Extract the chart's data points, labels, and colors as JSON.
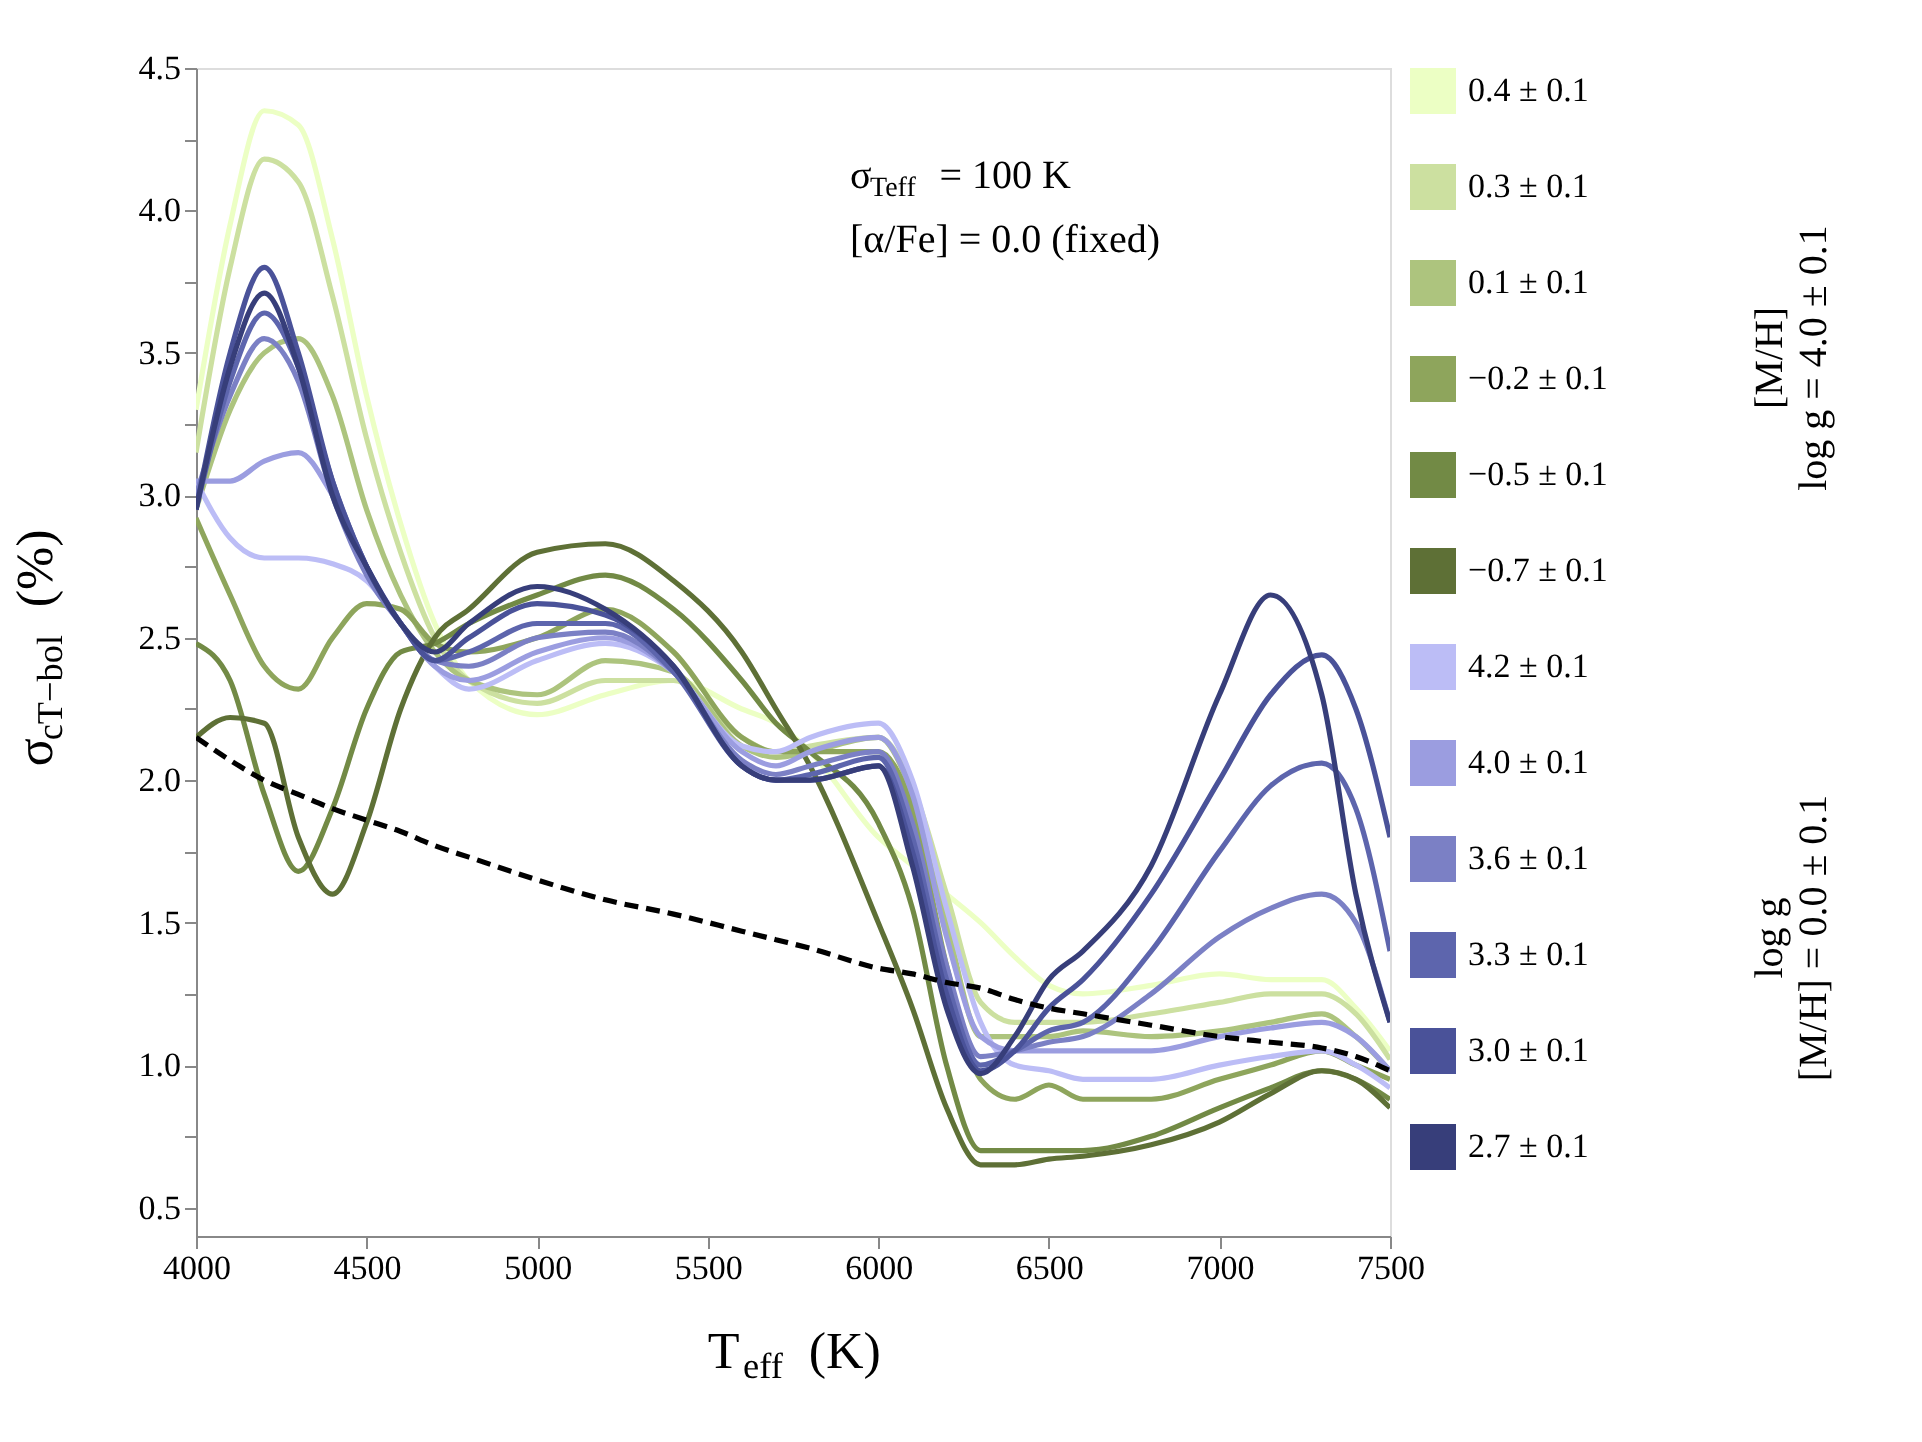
{
  "chart_data": {
    "type": "line",
    "xlabel": "T$_{eff}$ (K)",
    "ylabel": "σ$_{cT−bol}$ (%)",
    "x": [
      4000,
      4100,
      4200,
      4300,
      4400,
      4500,
      4600,
      4700,
      4800,
      5000,
      5200,
      5400,
      5600,
      5700,
      5800,
      6000,
      6100,
      6200,
      6300,
      6400,
      6500,
      6600,
      6800,
      7000,
      7150,
      7300,
      7400,
      7500
    ],
    "xlim": [
      4000,
      7500
    ],
    "xticks": [
      4000,
      4500,
      5000,
      5500,
      6000,
      6500,
      7000,
      7500
    ],
    "ylim": [
      0.4,
      4.5
    ],
    "yticks": [
      {
        "value": 0.5,
        "label": "0.5"
      },
      {
        "value": 0.75,
        "label": null
      },
      {
        "value": 1,
        "label": "1.0"
      },
      {
        "value": 1.25,
        "label": null
      },
      {
        "value": 1.5,
        "label": "1.5"
      },
      {
        "value": 1.75,
        "label": null
      },
      {
        "value": 2,
        "label": "2.0"
      },
      {
        "value": 2.25,
        "label": null
      },
      {
        "value": 2.5,
        "label": "2.5"
      },
      {
        "value": 2.75,
        "label": null
      },
      {
        "value": 3,
        "label": "3.0"
      },
      {
        "value": 3.25,
        "label": null
      },
      {
        "value": 3.5,
        "label": "3.5"
      },
      {
        "value": 3.75,
        "label": null
      },
      {
        "value": 4,
        "label": "4.0"
      },
      {
        "value": 4.25,
        "label": null
      },
      {
        "value": 4.5,
        "label": "4.5"
      }
    ],
    "grid": false,
    "legend": "right",
    "line_style": "solid",
    "annotations": [
      "σ$_{Teff}$ = 100 K",
      "[α/Fe] = 0.0 (fixed)",
      "[M/H]\nlog g = 4.0 ± 0.1",
      "log g\n[M/H] = 0.0 ± 0.1"
    ],
    "series": [
      {
        "name": "0.4 ± 0.1",
        "color": "#ecffc4",
        "values": [
          3.3,
          3.95,
          4.35,
          4.3,
          3.9,
          3.35,
          2.9,
          2.55,
          2.35,
          2.23,
          2.3,
          2.35,
          2.25,
          2.2,
          2.1,
          1.8,
          1.7,
          1.6,
          1.5,
          1.38,
          1.28,
          1.25,
          1.28,
          1.32,
          1.3,
          1.3,
          1.2,
          1.05
        ]
      },
      {
        "name": "0.3 ± 0.1",
        "color": "#cce0a0",
        "values": [
          3.15,
          3.8,
          4.18,
          4.1,
          3.7,
          3.2,
          2.8,
          2.5,
          2.35,
          2.27,
          2.35,
          2.35,
          2.15,
          2.1,
          2.12,
          2.15,
          1.98,
          1.6,
          1.22,
          1.15,
          1.15,
          1.15,
          1.18,
          1.22,
          1.25,
          1.25,
          1.18,
          1.02
        ]
      },
      {
        "name": "0.1 ± 0.1",
        "color": "#adc47e",
        "values": [
          2.95,
          3.3,
          3.5,
          3.55,
          3.35,
          2.95,
          2.65,
          2.45,
          2.35,
          2.3,
          2.42,
          2.38,
          2.12,
          2.08,
          2.1,
          2.15,
          1.95,
          1.5,
          1.1,
          1.1,
          1.1,
          1.12,
          1.1,
          1.12,
          1.15,
          1.18,
          1.1,
          0.98
        ]
      },
      {
        "name": "−0.2 ± 0.1",
        "color": "#8ea55c",
        "values": [
          2.92,
          2.65,
          2.4,
          2.32,
          2.5,
          2.62,
          2.6,
          2.48,
          2.45,
          2.5,
          2.6,
          2.45,
          2.15,
          2.1,
          2.1,
          2.1,
          1.9,
          1.35,
          0.95,
          0.88,
          0.93,
          0.88,
          0.88,
          0.95,
          1.0,
          1.05,
          1.0,
          0.95
        ]
      },
      {
        "name": "−0.5 ± 0.1",
        "color": "#728a45",
        "values": [
          2.48,
          2.35,
          1.95,
          1.68,
          1.9,
          2.25,
          2.45,
          2.48,
          2.55,
          2.65,
          2.72,
          2.6,
          2.35,
          2.2,
          2.1,
          1.85,
          1.55,
          1.0,
          0.7,
          0.7,
          0.7,
          0.7,
          0.75,
          0.85,
          0.92,
          0.98,
          0.95,
          0.88
        ]
      },
      {
        "name": "−0.7 ± 0.1",
        "color": "#5e7036",
        "values": [
          2.15,
          2.22,
          2.2,
          1.8,
          1.6,
          1.85,
          2.25,
          2.5,
          2.6,
          2.8,
          2.83,
          2.7,
          2.45,
          2.25,
          2.05,
          1.5,
          1.2,
          0.85,
          0.65,
          0.65,
          0.67,
          0.68,
          0.72,
          0.8,
          0.9,
          0.98,
          0.95,
          0.85
        ]
      },
      {
        "name": "4.2 ± 0.1",
        "color": "#bcbdf6",
        "values": [
          3.05,
          2.85,
          2.78,
          2.78,
          2.76,
          2.7,
          2.55,
          2.4,
          2.32,
          2.42,
          2.48,
          2.38,
          2.12,
          2.1,
          2.15,
          2.2,
          2.0,
          1.55,
          1.15,
          1.0,
          0.98,
          0.95,
          0.95,
          1.0,
          1.03,
          1.05,
          1.0,
          0.92
        ]
      },
      {
        "name": "4.0 ± 0.1",
        "color": "#9b9de0",
        "values": [
          3.05,
          3.05,
          3.12,
          3.15,
          3.0,
          2.75,
          2.55,
          2.4,
          2.35,
          2.45,
          2.5,
          2.38,
          2.1,
          2.05,
          2.1,
          2.15,
          1.95,
          1.45,
          1.1,
          1.05,
          1.05,
          1.05,
          1.05,
          1.1,
          1.13,
          1.15,
          1.1,
          0.98
        ]
      },
      {
        "name": "3.6 ± 0.1",
        "color": "#7b80c5",
        "values": [
          3.0,
          3.35,
          3.55,
          3.4,
          3.0,
          2.72,
          2.55,
          2.42,
          2.4,
          2.5,
          2.52,
          2.38,
          2.07,
          2.02,
          2.05,
          2.1,
          1.85,
          1.35,
          1.03,
          1.05,
          1.08,
          1.1,
          1.25,
          1.45,
          1.55,
          1.6,
          1.5,
          1.15
        ]
      },
      {
        "name": "3.3 ± 0.1",
        "color": "#5d65ad",
        "values": [
          2.95,
          3.4,
          3.64,
          3.45,
          3.05,
          2.75,
          2.55,
          2.42,
          2.45,
          2.55,
          2.55,
          2.38,
          2.05,
          2.0,
          2.02,
          2.08,
          1.8,
          1.3,
          1.0,
          1.05,
          1.12,
          1.15,
          1.4,
          1.75,
          1.98,
          2.06,
          1.9,
          1.4
        ]
      },
      {
        "name": "3.0 ± 0.1",
        "color": "#4a5299",
        "values": [
          2.95,
          3.5,
          3.8,
          3.5,
          3.05,
          2.75,
          2.55,
          2.42,
          2.5,
          2.62,
          2.58,
          2.4,
          2.05,
          2.0,
          2.0,
          2.05,
          1.75,
          1.25,
          0.98,
          1.05,
          1.2,
          1.3,
          1.6,
          2.0,
          2.3,
          2.44,
          2.25,
          1.8
        ]
      },
      {
        "name": "2.7 ± 0.1",
        "color": "#373e7a",
        "values": [
          2.95,
          3.45,
          3.71,
          3.45,
          3.0,
          2.75,
          2.55,
          2.45,
          2.55,
          2.68,
          2.6,
          2.4,
          2.05,
          2.0,
          2.0,
          2.05,
          1.7,
          1.2,
          0.97,
          1.1,
          1.3,
          1.4,
          1.7,
          2.3,
          2.65,
          2.3,
          1.6,
          1.15
        ]
      },
      {
        "color": "#000000",
        "line_style": "dashed",
        "values": [
          2.15,
          2.07,
          2.0,
          1.95,
          1.9,
          1.86,
          1.82,
          1.77,
          1.73,
          1.65,
          1.58,
          1.53,
          1.47,
          1.44,
          1.41,
          1.34,
          1.32,
          1.29,
          1.27,
          1.23,
          1.2,
          1.18,
          1.14,
          1.1,
          1.08,
          1.06,
          1.03,
          0.98
        ]
      }
    ]
  }
}
